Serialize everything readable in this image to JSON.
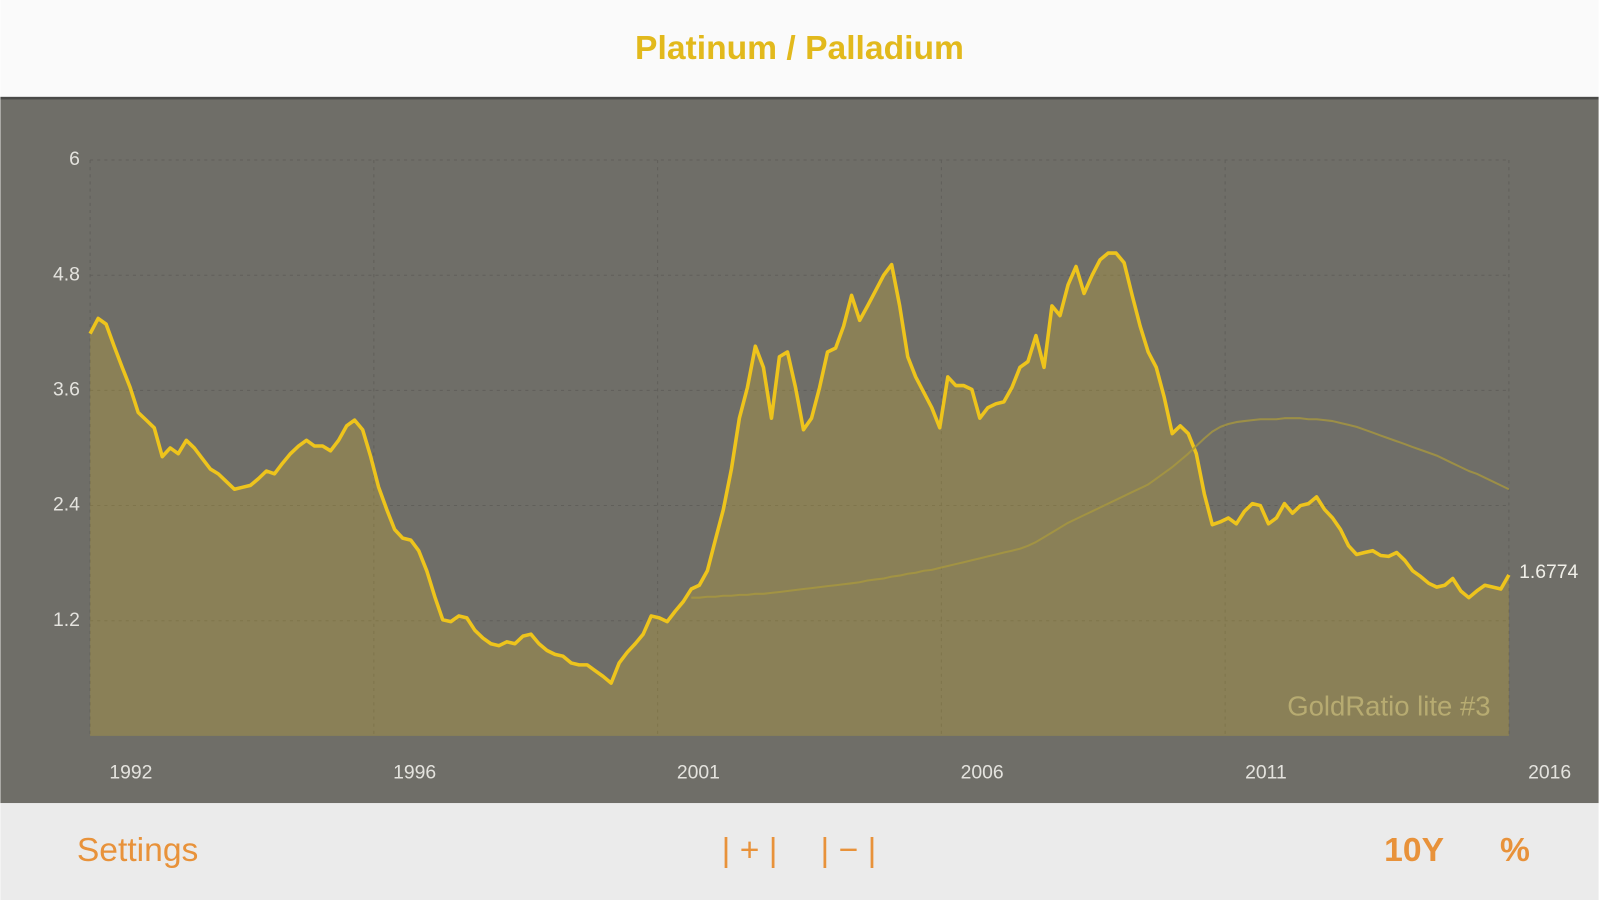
{
  "header": {
    "title": "Platinum / Palladium"
  },
  "chart_data": {
    "type": "line",
    "ylim": [
      0,
      6
    ],
    "yticks": [
      1.2,
      2.4,
      3.6,
      4.8,
      6
    ],
    "grid": true,
    "x_labels": [
      "1992",
      "1996",
      "2001",
      "2006",
      "2011",
      "2016"
    ],
    "watermark": "GoldRatio lite #3",
    "series": [
      {
        "color": "#eec41c",
        "fill": true,
        "values": [
          4.19,
          4.35,
          4.29,
          4.06,
          3.84,
          3.63,
          3.37,
          3.29,
          3.21,
          2.91,
          3.0,
          2.94,
          3.08,
          3.0,
          2.89,
          2.78,
          2.73,
          2.65,
          2.57,
          2.59,
          2.61,
          2.68,
          2.76,
          2.73,
          2.84,
          2.94,
          3.02,
          3.08,
          3.02,
          3.02,
          2.97,
          3.08,
          3.23,
          3.29,
          3.19,
          2.91,
          2.59,
          2.36,
          2.15,
          2.06,
          2.04,
          1.93,
          1.72,
          1.45,
          1.21,
          1.19,
          1.25,
          1.23,
          1.1,
          1.02,
          0.96,
          0.94,
          0.98,
          0.96,
          1.04,
          1.06,
          0.96,
          0.89,
          0.85,
          0.83,
          0.76,
          0.74,
          0.74,
          0.68,
          0.62,
          0.55,
          0.76,
          0.87,
          0.96,
          1.06,
          1.25,
          1.23,
          1.19,
          1.3,
          1.4,
          1.53,
          1.57,
          1.72,
          2.04,
          2.36,
          2.78,
          3.31,
          3.63,
          4.06,
          3.84,
          3.31,
          3.95,
          4.0,
          3.63,
          3.19,
          3.31,
          3.63,
          4.0,
          4.04,
          4.27,
          4.59,
          4.33,
          4.48,
          4.64,
          4.8,
          4.91,
          4.48,
          3.95,
          3.74,
          3.58,
          3.42,
          3.21,
          3.74,
          3.65,
          3.65,
          3.61,
          3.31,
          3.42,
          3.46,
          3.48,
          3.63,
          3.84,
          3.9,
          4.17,
          3.84,
          4.48,
          4.38,
          4.7,
          4.89,
          4.61,
          4.8,
          4.96,
          5.03,
          5.03,
          4.93,
          4.59,
          4.27,
          4.0,
          3.84,
          3.53,
          3.15,
          3.23,
          3.15,
          2.94,
          2.52,
          2.2,
          2.23,
          2.27,
          2.21,
          2.34,
          2.42,
          2.4,
          2.21,
          2.27,
          2.42,
          2.32,
          2.4,
          2.42,
          2.49,
          2.36,
          2.27,
          2.15,
          1.98,
          1.89,
          1.91,
          1.93,
          1.88,
          1.87,
          1.91,
          1.83,
          1.72,
          1.66,
          1.59,
          1.55,
          1.57,
          1.64,
          1.51,
          1.44,
          1.51,
          1.57,
          1.55,
          1.53,
          1.6774
        ]
      },
      {
        "color": "#a8973f",
        "fill": false,
        "values": [
          null,
          null,
          null,
          null,
          null,
          null,
          null,
          null,
          null,
          null,
          null,
          null,
          null,
          null,
          null,
          null,
          null,
          null,
          null,
          null,
          null,
          null,
          null,
          null,
          null,
          null,
          null,
          null,
          null,
          null,
          null,
          null,
          null,
          null,
          null,
          null,
          null,
          null,
          null,
          null,
          null,
          null,
          null,
          null,
          null,
          null,
          null,
          null,
          null,
          null,
          null,
          null,
          null,
          null,
          null,
          null,
          null,
          null,
          null,
          null,
          null,
          null,
          null,
          null,
          null,
          null,
          null,
          null,
          null,
          null,
          null,
          null,
          null,
          null,
          null,
          1.44,
          1.44,
          1.45,
          1.45,
          1.46,
          1.46,
          1.47,
          1.47,
          1.48,
          1.48,
          1.49,
          1.5,
          1.51,
          1.52,
          1.53,
          1.54,
          1.55,
          1.56,
          1.57,
          1.58,
          1.59,
          1.6,
          1.62,
          1.63,
          1.64,
          1.66,
          1.67,
          1.69,
          1.7,
          1.72,
          1.73,
          1.75,
          1.77,
          1.79,
          1.81,
          1.83,
          1.85,
          1.87,
          1.89,
          1.91,
          1.93,
          1.95,
          1.98,
          2.02,
          2.07,
          2.12,
          2.17,
          2.22,
          2.26,
          2.3,
          2.34,
          2.38,
          2.42,
          2.46,
          2.5,
          2.54,
          2.58,
          2.62,
          2.68,
          2.74,
          2.8,
          2.87,
          2.94,
          3.02,
          3.1,
          3.17,
          3.22,
          3.25,
          3.27,
          3.28,
          3.29,
          3.3,
          3.3,
          3.3,
          3.31,
          3.31,
          3.31,
          3.3,
          3.3,
          3.29,
          3.28,
          3.26,
          3.24,
          3.22,
          3.19,
          3.16,
          3.13,
          3.1,
          3.07,
          3.04,
          3.01,
          2.98,
          2.95,
          2.92,
          2.88,
          2.84,
          2.8,
          2.76,
          2.73,
          2.69,
          2.65,
          2.61,
          2.57
        ]
      }
    ]
  },
  "toolbar": {
    "settings": "Settings",
    "zoom_in": "| + |",
    "zoom_out": "| − |",
    "range": "10Y",
    "mode": "%"
  }
}
